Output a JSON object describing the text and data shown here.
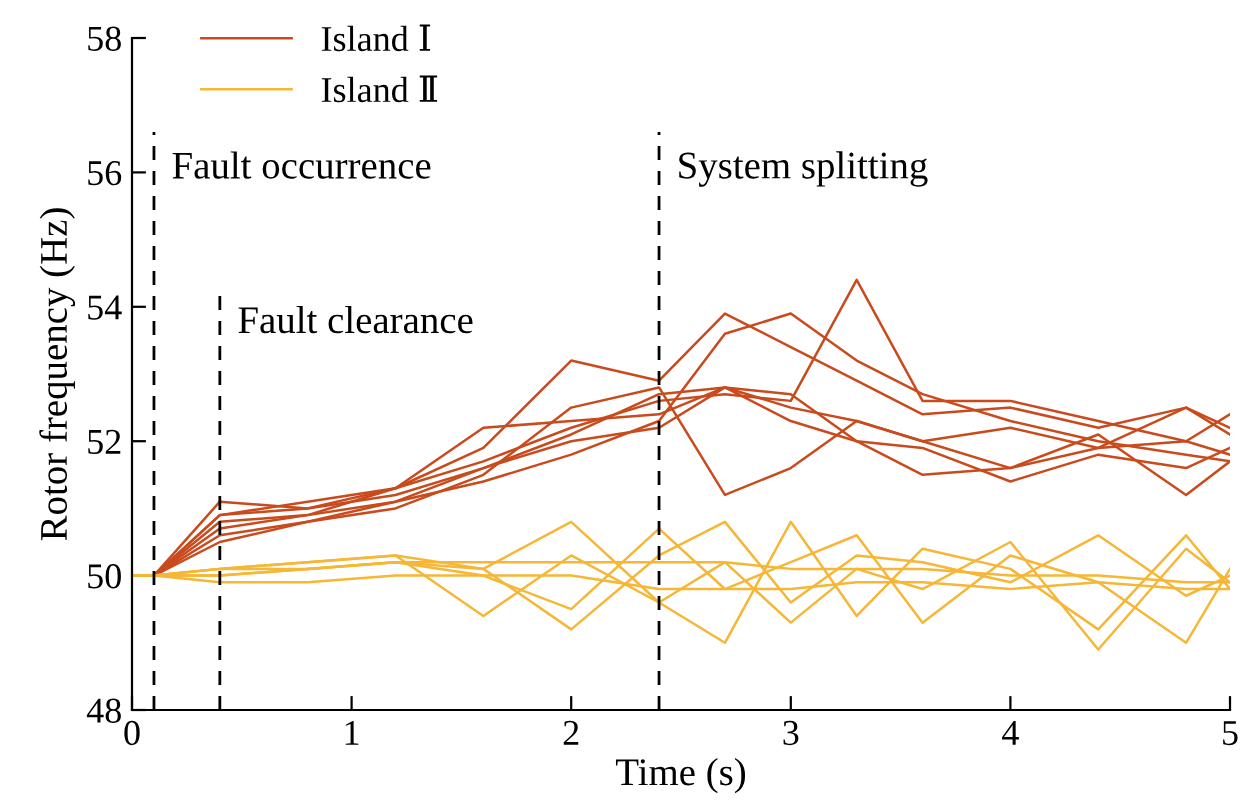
{
  "chart_data": {
    "type": "line",
    "xlabel": "Time (s)",
    "ylabel": "Rotor frequency (Hz)",
    "x": [
      0,
      0.1,
      0.4,
      0.8,
      1.2,
      1.6,
      2.0,
      2.4,
      2.7,
      3.0,
      3.3,
      3.6,
      4.0,
      4.4,
      4.8,
      5.0
    ],
    "series": [
      {
        "name": "Island Ⅰ",
        "color": "#c94a1c",
        "values": [
          50,
          50,
          51.1,
          51.0,
          51.2,
          51.6,
          52.1,
          52.7,
          52.8,
          52.5,
          52.3,
          52.0,
          52.2,
          51.9,
          52.0,
          51.8
        ]
      },
      {
        "color": "#c94a1c",
        "values": [
          50,
          50,
          50.9,
          51.0,
          51.3,
          51.9,
          53.2,
          52.9,
          53.9,
          53.4,
          52.9,
          52.4,
          52.5,
          52.2,
          52.5,
          52.2
        ]
      },
      {
        "color": "#c94a1c",
        "values": [
          50,
          50,
          50.8,
          50.9,
          51.1,
          51.4,
          51.8,
          52.3,
          53.6,
          53.9,
          53.2,
          52.7,
          52.3,
          52.0,
          51.8,
          51.7
        ]
      },
      {
        "color": "#c94a1c",
        "values": [
          50,
          50,
          50.6,
          50.8,
          51.0,
          51.5,
          52.5,
          52.8,
          51.2,
          51.6,
          52.3,
          52.0,
          51.6,
          51.9,
          52.5,
          52.1
        ]
      },
      {
        "color": "#c94a1c",
        "values": [
          50,
          50,
          50.7,
          50.9,
          51.3,
          51.7,
          52.2,
          52.6,
          52.7,
          52.6,
          54.4,
          52.6,
          52.6,
          52.3,
          52.0,
          52.4
        ]
      },
      {
        "color": "#c94a1c",
        "values": [
          50,
          50,
          50.9,
          51.1,
          51.3,
          52.2,
          52.3,
          52.4,
          52.8,
          52.3,
          52.0,
          51.9,
          51.4,
          51.8,
          51.6,
          51.9
        ]
      },
      {
        "color": "#c94a1c",
        "values": [
          50,
          50,
          50.5,
          50.8,
          51.1,
          51.6,
          52.0,
          52.2,
          52.8,
          52.7,
          52.0,
          51.5,
          51.6,
          52.1,
          51.2,
          51.7
        ]
      },
      {
        "name": "Island Ⅱ",
        "color": "#f6b636",
        "values": [
          50,
          50,
          50.0,
          50.1,
          50.2,
          50.2,
          50.2,
          50.2,
          50.2,
          50.1,
          50.1,
          50.1,
          50.0,
          50.0,
          49.9,
          49.9
        ]
      },
      {
        "color": "#f6b636",
        "values": [
          50,
          50,
          49.9,
          49.9,
          50.0,
          50.0,
          50.0,
          49.8,
          49.8,
          49.8,
          49.9,
          49.9,
          49.8,
          49.9,
          49.8,
          49.8
        ]
      },
      {
        "color": "#f6b636",
        "values": [
          50,
          50,
          50.1,
          50.2,
          50.3,
          50.1,
          49.2,
          50.3,
          50.8,
          49.6,
          50.3,
          50.2,
          49.9,
          50.6,
          49.7,
          50.0
        ]
      },
      {
        "color": "#f6b636",
        "values": [
          50,
          50,
          50.1,
          50.2,
          50.3,
          49.4,
          50.3,
          49.6,
          49.0,
          50.8,
          49.4,
          50.4,
          50.1,
          49.2,
          50.6,
          49.8
        ]
      },
      {
        "color": "#f6b636",
        "values": [
          50,
          50,
          50.0,
          50.1,
          50.2,
          50.0,
          49.5,
          50.7,
          49.8,
          50.2,
          50.6,
          49.3,
          50.3,
          49.9,
          49.0,
          50.1
        ]
      },
      {
        "color": "#f6b636",
        "values": [
          50,
          50,
          50.1,
          50.1,
          50.2,
          50.1,
          50.8,
          49.6,
          50.2,
          49.3,
          50.1,
          49.8,
          50.5,
          48.9,
          50.4,
          49.9
        ]
      }
    ],
    "ref_lines": [
      {
        "axis": "x",
        "value": 0.1,
        "label": "Fault occurrence",
        "color": "#000000",
        "line_style": "dashed"
      },
      {
        "axis": "x",
        "value": 0.4,
        "label": "Fault clearance",
        "color": "#000000",
        "line_style": "dashed"
      },
      {
        "axis": "x",
        "value": 2.4,
        "label": "System splitting",
        "color": "#000000",
        "line_style": "dashed"
      }
    ],
    "xlim": [
      0,
      5
    ],
    "ylim": [
      48,
      58
    ],
    "xticks": [
      0,
      1,
      2,
      3,
      4,
      5
    ],
    "yticks": [
      48,
      50,
      52,
      54,
      56,
      58
    ],
    "legend": "top left",
    "grid": false,
    "marker": "none",
    "line_style": "solid"
  }
}
